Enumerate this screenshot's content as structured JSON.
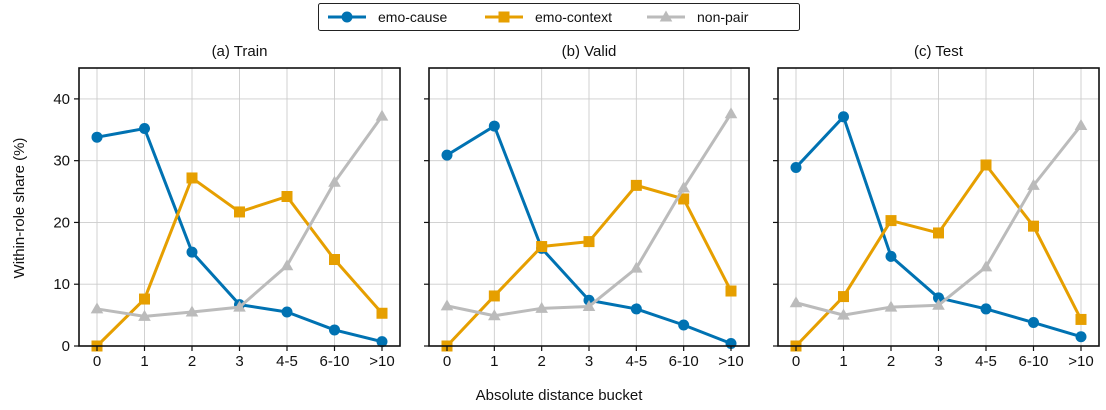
{
  "chart_data": {
    "type": "line",
    "xlabel": "Absolute distance bucket",
    "ylabel": "Within-role share (%)",
    "ylim": [
      0,
      45
    ],
    "yticks": [
      0,
      10,
      20,
      30,
      40
    ],
    "grid": true,
    "legend_position": "top-center",
    "categories": [
      "0",
      "1",
      "2",
      "3",
      "4-5",
      "6-10",
      ">10"
    ],
    "legend": [
      {
        "name": "emo-cause",
        "color": "#0072b2",
        "marker": "circle"
      },
      {
        "name": "emo-context",
        "color": "#e69f00",
        "marker": "square"
      },
      {
        "name": "non-pair",
        "color": "#bbbbbb",
        "marker": "triangle"
      }
    ],
    "panels": [
      {
        "title": "(a) Train",
        "series": [
          {
            "name": "emo-cause",
            "values": [
              33.8,
              35.2,
              15.2,
              6.7,
              5.5,
              2.6,
              0.7
            ]
          },
          {
            "name": "emo-context",
            "values": [
              0.0,
              7.6,
              27.2,
              21.7,
              24.2,
              14.0,
              5.3
            ]
          },
          {
            "name": "non-pair",
            "values": [
              6.0,
              4.8,
              5.5,
              6.3,
              13.0,
              26.5,
              37.2
            ]
          }
        ]
      },
      {
        "title": "(b) Valid",
        "series": [
          {
            "name": "emo-cause",
            "values": [
              30.9,
              35.6,
              15.8,
              7.4,
              6.0,
              3.4,
              0.4
            ]
          },
          {
            "name": "emo-context",
            "values": [
              0.0,
              8.1,
              16.1,
              16.9,
              26.0,
              23.8,
              8.9
            ]
          },
          {
            "name": "non-pair",
            "values": [
              6.5,
              4.9,
              6.1,
              6.4,
              12.6,
              25.6,
              37.6
            ]
          }
        ]
      },
      {
        "title": "(c) Test",
        "series": [
          {
            "name": "emo-cause",
            "values": [
              28.9,
              37.1,
              14.5,
              7.8,
              6.0,
              3.8,
              1.5
            ]
          },
          {
            "name": "emo-context",
            "values": [
              0.0,
              8.0,
              20.3,
              18.3,
              29.3,
              19.4,
              4.3
            ]
          },
          {
            "name": "non-pair",
            "values": [
              7.0,
              5.0,
              6.3,
              6.6,
              12.8,
              26.0,
              35.7
            ]
          }
        ]
      }
    ]
  }
}
